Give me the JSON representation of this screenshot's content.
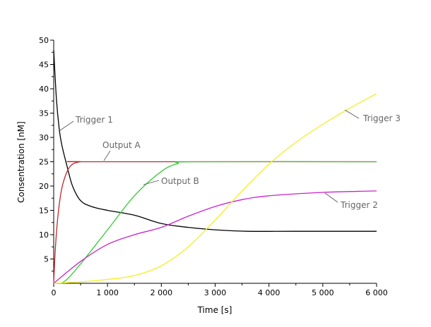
{
  "chart_data": {
    "type": "line",
    "title": "",
    "xlabel": "Time [s]",
    "ylabel": "Consentration [nM]",
    "xlim": [
      0,
      6000
    ],
    "ylim": [
      0,
      50
    ],
    "x_ticks": [
      0,
      1000,
      2000,
      3000,
      4000,
      5000,
      6000
    ],
    "x_tick_labels": [
      "0",
      "1 000",
      "2 000",
      "3 000",
      "4 000",
      "5 000",
      "6 000"
    ],
    "y_ticks": [
      5,
      10,
      15,
      20,
      25,
      30,
      35,
      40,
      45,
      50
    ],
    "y_tick_labels": [
      "5",
      "10",
      "15",
      "20",
      "25",
      "30",
      "35",
      "40",
      "45",
      "50"
    ],
    "grid": false,
    "series": [
      {
        "name": "Trigger 1",
        "color": "#000000",
        "x": [
          0,
          50,
          100,
          150,
          250,
          350,
          500,
          700,
          1000,
          1500,
          2000,
          2500,
          3000,
          3600,
          4500,
          6000
        ],
        "y": [
          48,
          38,
          32,
          28.5,
          24,
          20,
          17,
          15.8,
          15,
          14,
          12.3,
          11.5,
          11,
          10.7,
          10.7,
          10.7
        ],
        "label_pos": {
          "x": 420,
          "y": 34
        }
      },
      {
        "name": "Output A",
        "color": "#c0282d",
        "x": [
          0,
          30,
          80,
          150,
          250,
          350,
          500,
          700,
          6000
        ],
        "y": [
          0,
          7,
          14,
          19.5,
          23,
          24.5,
          25,
          25,
          25
        ],
        "label_pos": {
          "x": 900,
          "y": 28.5
        }
      },
      {
        "name": "Output B",
        "color": "#33cc33",
        "x": [
          0,
          200,
          500,
          1000,
          1500,
          2000,
          2300,
          2600,
          6000
        ],
        "y": [
          0,
          0.4,
          4,
          11,
          18,
          23,
          24.6,
          25,
          25
        ],
        "label_pos": {
          "x": 2000,
          "y": 21
        }
      },
      {
        "name": "Trigger 2",
        "color": "#cc22cc",
        "x": [
          0,
          500,
          1000,
          1500,
          2000,
          2500,
          3000,
          3500,
          4000,
          5000,
          6000
        ],
        "y": [
          0,
          4.5,
          8,
          10,
          11.5,
          13.8,
          15.8,
          17.2,
          18,
          18.7,
          19
        ],
        "label_pos": {
          "x": 5300,
          "y": 15.5
        }
      },
      {
        "name": "Trigger 3",
        "color": "#f0f020",
        "x": [
          0,
          500,
          1000,
          1500,
          2000,
          2500,
          3000,
          3500,
          4000,
          4500,
          5000,
          5500,
          6000
        ],
        "y": [
          0,
          0.3,
          0.8,
          1.6,
          3.6,
          7.5,
          13,
          19,
          24.5,
          29,
          32.7,
          36,
          39
        ],
        "label_pos": {
          "x": 5700,
          "y": 34
        }
      }
    ]
  }
}
